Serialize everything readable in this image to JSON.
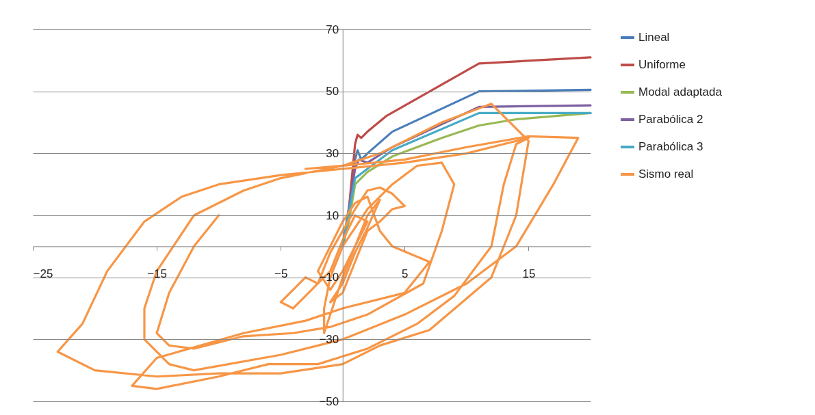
{
  "chart_data": {
    "type": "line",
    "xlim": [
      -25,
      20
    ],
    "ylim": [
      -50,
      70
    ],
    "xticks": [
      -25,
      -15,
      -5,
      5,
      15
    ],
    "yticks": [
      -50,
      -30,
      -10,
      10,
      30,
      50,
      70
    ],
    "grid": "y",
    "legend": "right",
    "line_style": "solid",
    "series": [
      {
        "name": "Lineal",
        "color": "#4a7ebb",
        "x": [
          0,
          0.5,
          1,
          1.2,
          1.5,
          2,
          4,
          11,
          20
        ],
        "values": [
          0,
          10,
          28,
          31,
          28,
          30,
          37,
          50,
          50.5
        ]
      },
      {
        "name": "Uniforme",
        "color": "#be4b48",
        "x": [
          0,
          0.5,
          1,
          1.2,
          1.5,
          2,
          3.5,
          11,
          20
        ],
        "values": [
          0,
          12,
          33,
          36,
          35,
          37,
          42,
          59,
          61
        ]
      },
      {
        "name": "Modal adaptada",
        "color": "#98b954",
        "x": [
          0,
          0.5,
          1,
          2,
          4,
          8,
          11,
          14,
          20
        ],
        "values": [
          0,
          8,
          20,
          24,
          29,
          35,
          39,
          41,
          43
        ]
      },
      {
        "name": "Parabólica 2",
        "color": "#7d60a0",
        "x": [
          0,
          1,
          1.3,
          2,
          4,
          11,
          20
        ],
        "values": [
          0,
          25,
          28,
          27,
          32,
          45,
          45.5
        ]
      },
      {
        "name": "Parabólica 3",
        "color": "#46aac5",
        "x": [
          0,
          1,
          2,
          4,
          11,
          20
        ],
        "values": [
          0,
          22,
          25,
          31,
          43,
          43
        ]
      },
      {
        "name": "Sismo real",
        "color": "#f79646",
        "x": [
          -10,
          -12,
          -14,
          -15,
          -14,
          -12,
          -8,
          -4,
          -1,
          2,
          6.5,
          8,
          9,
          8,
          6,
          4,
          2,
          0,
          -1,
          -1.5,
          -1.5,
          -1,
          0,
          1,
          2,
          1,
          0,
          -1,
          -2,
          -3,
          -4,
          -5,
          -4,
          -3,
          -2,
          -1,
          0,
          1,
          2,
          3,
          4,
          5,
          4,
          3,
          2,
          1,
          0,
          -1,
          0,
          1,
          2,
          3,
          2,
          1,
          0,
          -1,
          -2,
          -1,
          0,
          1,
          2,
          3,
          4,
          7,
          5,
          0,
          -3,
          -8,
          -15,
          -17,
          -15,
          -10,
          -6,
          -2,
          2,
          6,
          9,
          12,
          13,
          14,
          15,
          13,
          10,
          5,
          0,
          -5,
          -10,
          -13,
          -16,
          -19,
          -21,
          -23,
          -20,
          -15,
          -10,
          -5,
          0,
          3,
          7,
          12,
          14,
          15,
          12,
          8,
          3,
          0,
          -5,
          -8,
          -12,
          -15,
          -16,
          -16,
          -14,
          -12,
          -5,
          0,
          5,
          10,
          14,
          17,
          19,
          15,
          10,
          5,
          0,
          -3
        ],
        "values": [
          10,
          0,
          -15,
          -28,
          -32,
          -33,
          -29,
          -28,
          -26,
          -22,
          -12,
          5,
          20,
          27,
          26,
          20,
          12,
          0,
          -10,
          -20,
          -28,
          -22,
          -10,
          0,
          8,
          10,
          2,
          -8,
          -12,
          -10,
          -14,
          -18,
          -20,
          -16,
          -12,
          -2,
          5,
          12,
          18,
          19,
          17,
          13,
          12,
          8,
          5,
          -5,
          -15,
          -18,
          -12,
          -2,
          6,
          15,
          10,
          0,
          -8,
          -14,
          -8,
          0,
          8,
          14,
          16,
          5,
          0,
          -5,
          -15,
          -20,
          -24,
          -28,
          -36,
          -45,
          -46,
          -42,
          -38,
          -38,
          -33,
          -25,
          -16,
          0,
          20,
          33,
          35,
          33,
          30,
          27,
          25,
          23,
          20,
          16,
          8,
          -8,
          -25,
          -34,
          -40,
          -42,
          -41,
          -41,
          -38,
          -32,
          -27,
          -10,
          10,
          34,
          46,
          40,
          30,
          26,
          22,
          18,
          10,
          -8,
          -20,
          -30,
          -38,
          -40,
          -35,
          -30,
          -22,
          -12,
          0,
          20,
          35,
          35.5,
          32,
          28,
          26,
          25
        ]
      }
    ]
  }
}
